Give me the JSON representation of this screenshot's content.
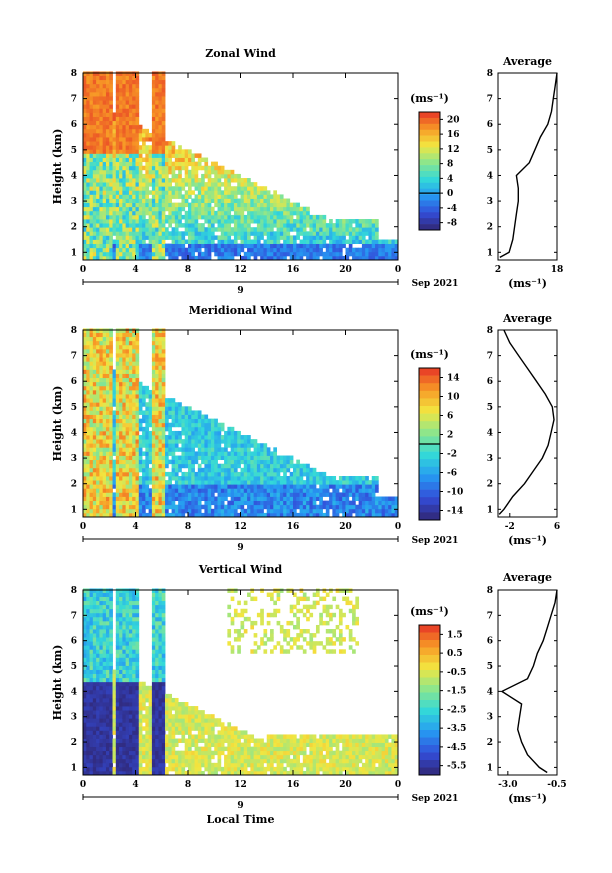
{
  "figure": {
    "x_axis_label": "Local Time",
    "date_label": "Sep 2021",
    "day_label": "9",
    "height_label": "Height (km)",
    "unit_label": "(ms⁻¹)",
    "average_title": "Average"
  },
  "chart_data": [
    {
      "type": "heatmap",
      "title": "Zonal Wind",
      "xlabel": "",
      "ylabel": "Height (km)",
      "x_ticks": [
        "0",
        "4",
        "8",
        "12",
        "16",
        "20",
        "0"
      ],
      "xlim": [
        0,
        24
      ],
      "ylim": [
        0.7,
        8
      ],
      "y_ticks": [
        "1",
        "2",
        "3",
        "4",
        "5",
        "6",
        "7",
        "8"
      ],
      "colorbar": {
        "ticks": [
          "20",
          "16",
          "12",
          "8",
          "4",
          "0",
          "-4",
          "-8"
        ],
        "range": [
          -10,
          22
        ],
        "zero_line": 0
      },
      "average_profile": {
        "x_ticks": [
          "2",
          "18"
        ],
        "xlim": [
          2,
          18
        ],
        "heights": [
          0.8,
          1.0,
          1.5,
          2.0,
          2.5,
          3.0,
          3.5,
          4.0,
          4.5,
          5.0,
          5.5,
          6.0,
          6.5,
          7.0,
          7.5,
          8.0
        ],
        "values": [
          2.5,
          5,
          6,
          6.5,
          7,
          7.5,
          7.5,
          7,
          10.5,
          12,
          13.5,
          15.5,
          16.5,
          17,
          17.5,
          18
        ]
      }
    },
    {
      "type": "heatmap",
      "title": "Meridional Wind",
      "xlabel": "",
      "ylabel": "Height (km)",
      "x_ticks": [
        "0",
        "4",
        "8",
        "12",
        "16",
        "20",
        "0"
      ],
      "xlim": [
        0,
        24
      ],
      "ylim": [
        0.7,
        8
      ],
      "y_ticks": [
        "1",
        "2",
        "3",
        "4",
        "5",
        "6",
        "7",
        "8"
      ],
      "colorbar": {
        "ticks": [
          "14",
          "10",
          "6",
          "2",
          "-2",
          "-6",
          "-10",
          "-14"
        ],
        "range": [
          -16,
          16
        ],
        "zero_line": 0
      },
      "average_profile": {
        "x_ticks": [
          "-2",
          "6"
        ],
        "xlim": [
          -4,
          6
        ],
        "heights": [
          0.8,
          1.0,
          1.5,
          2.0,
          2.5,
          3.0,
          3.5,
          4.0,
          4.5,
          5.0,
          5.5,
          6.0,
          6.5,
          7.0,
          7.5,
          8.0
        ],
        "values": [
          -3.8,
          -3,
          -1.5,
          0.5,
          2,
          3.5,
          4.5,
          5,
          5.5,
          5.2,
          4,
          2.5,
          1,
          -0.5,
          -2,
          -3
        ]
      }
    },
    {
      "type": "heatmap",
      "title": "Vertical Wind",
      "xlabel": "Local Time",
      "ylabel": "Height (km)",
      "x_ticks": [
        "0",
        "4",
        "8",
        "12",
        "16",
        "20",
        "0"
      ],
      "xlim": [
        0,
        24
      ],
      "ylim": [
        0.7,
        8
      ],
      "y_ticks": [
        "1",
        "2",
        "3",
        "4",
        "5",
        "6",
        "7",
        "8"
      ],
      "colorbar": {
        "ticks": [
          "1.5",
          "0.5",
          "-0.5",
          "-1.5",
          "-2.5",
          "-3.5",
          "-4.5",
          "-5.5"
        ],
        "range": [
          -6,
          2
        ]
      },
      "average_profile": {
        "x_ticks": [
          "-3.0",
          "-0.5"
        ],
        "xlim": [
          -3.5,
          -0.5
        ],
        "heights": [
          0.8,
          1.0,
          1.5,
          2.0,
          2.5,
          3.0,
          3.5,
          4.0,
          4.5,
          5.0,
          5.5,
          6.0,
          6.5,
          7.0,
          7.5,
          8.0
        ],
        "values": [
          -1.0,
          -1.4,
          -2.0,
          -2.3,
          -2.5,
          -2.4,
          -2.3,
          -3.3,
          -2.0,
          -1.7,
          -1.5,
          -1.2,
          -1.0,
          -0.8,
          -0.6,
          -0.5
        ]
      }
    }
  ]
}
